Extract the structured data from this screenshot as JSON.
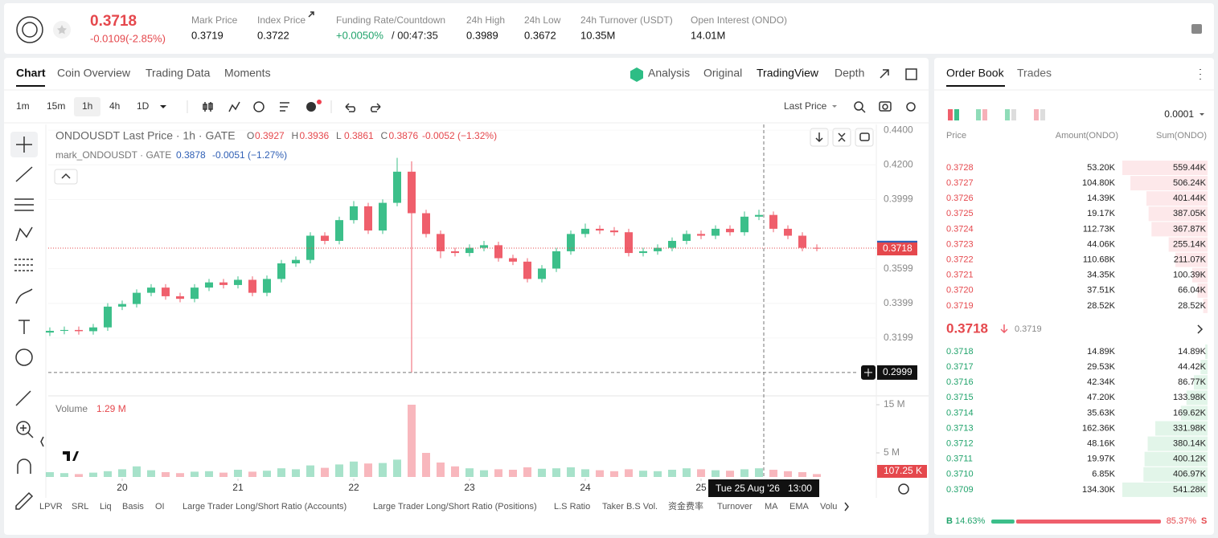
{
  "header": {
    "price": "0.3718",
    "change": "-0.0109(-2.85%)",
    "stats": [
      {
        "label": "Mark Price",
        "value": "0.3719"
      },
      {
        "label": "Index Price",
        "value": "0.3722"
      },
      {
        "label": "Funding Rate/Countdown",
        "value": "+0.0050%",
        "extra": "/ 00:47:35"
      },
      {
        "label": "24h High",
        "value": "0.3989"
      },
      {
        "label": "24h Low",
        "value": "0.3672"
      },
      {
        "label": "24h Turnover (USDT)",
        "value": "10.35M"
      },
      {
        "label": "Open Interest (ONDO)",
        "value": "14.01M"
      }
    ]
  },
  "chart_panel": {
    "tabs": [
      "Chart",
      "Coin Overview",
      "Trading Data",
      "Moments"
    ],
    "views": [
      "Analysis",
      "Original",
      "TradingView",
      "Depth"
    ],
    "intervals": [
      "1m",
      "15m",
      "1h",
      "4h",
      "1D"
    ],
    "price_source": "Last Price",
    "indicators": [
      "LPVR",
      "SRL",
      "Liq",
      "Basis",
      "OI",
      "Large Trader Long/Short Ratio (Accounts)",
      "Large Trader Long/Short Ratio (Positions)",
      "L.S Ratio",
      "Taker B.S Vol.",
      "资金费率",
      "Turnover",
      "MA",
      "EMA",
      "Volu"
    ]
  },
  "chart_data": {
    "type": "candlestick",
    "legend": {
      "title": "ONDOUSDT Last Price · 1h · GATE",
      "ohlc": [
        {
          "k": "O",
          "v": "0.3927"
        },
        {
          "k": "H",
          "v": "0.3936"
        },
        {
          "k": "L",
          "v": "0.3861"
        },
        {
          "k": "C",
          "v": "0.3876"
        }
      ],
      "change": "-0.0052 (−1.32%)",
      "mark_title": "mark_ONDOUSDT · GATE",
      "mark_value": "0.3878",
      "mark_change": "-0.0051 (−1.27%)"
    },
    "x": [
      -15,
      -12,
      -9,
      -6,
      -3,
      0,
      3,
      6,
      9,
      12,
      15,
      18,
      21,
      24,
      27,
      30,
      33,
      36,
      39,
      42,
      45,
      48,
      51,
      54,
      57,
      60,
      63,
      66,
      69,
      72,
      75,
      78,
      81,
      84,
      87,
      90,
      93,
      96,
      99,
      102,
      105,
      108,
      111,
      114,
      117,
      120,
      123,
      126,
      129,
      132,
      135,
      138,
      141,
      144
    ],
    "open": [
      0.323,
      0.324,
      0.3245,
      0.3238,
      0.326,
      0.338,
      0.3395,
      0.346,
      0.349,
      0.344,
      0.3425,
      0.349,
      0.352,
      0.3505,
      0.3535,
      0.346,
      0.354,
      0.363,
      0.365,
      0.379,
      0.376,
      0.388,
      0.396,
      0.382,
      0.398,
      0.416,
      0.392,
      0.38,
      0.37,
      0.369,
      0.372,
      0.3735,
      0.366,
      0.364,
      0.354,
      0.36,
      0.37,
      0.38,
      0.383,
      0.382,
      0.381,
      0.369,
      0.37,
      0.372,
      0.376,
      0.38,
      0.379,
      0.383,
      0.381,
      0.39,
      0.391,
      0.383,
      0.379,
      0.372
    ],
    "high": [
      0.326,
      0.3265,
      0.3265,
      0.328,
      0.34,
      0.3415,
      0.348,
      0.351,
      0.351,
      0.346,
      0.351,
      0.354,
      0.354,
      0.3555,
      0.3555,
      0.356,
      0.365,
      0.367,
      0.381,
      0.381,
      0.39,
      0.399,
      0.398,
      0.4,
      0.424,
      0.422,
      0.394,
      0.382,
      0.372,
      0.374,
      0.376,
      0.3755,
      0.368,
      0.366,
      0.362,
      0.372,
      0.382,
      0.386,
      0.385,
      0.384,
      0.383,
      0.372,
      0.374,
      0.378,
      0.382,
      0.382,
      0.385,
      0.385,
      0.393,
      0.394,
      0.393,
      0.385,
      0.381,
      0.374
    ],
    "low": [
      0.321,
      0.322,
      0.3218,
      0.3218,
      0.324,
      0.336,
      0.3375,
      0.344,
      0.342,
      0.3405,
      0.3405,
      0.347,
      0.3485,
      0.3485,
      0.344,
      0.344,
      0.352,
      0.361,
      0.363,
      0.374,
      0.374,
      0.386,
      0.38,
      0.38,
      0.396,
      0.2999,
      0.378,
      0.366,
      0.367,
      0.367,
      0.37,
      0.364,
      0.362,
      0.352,
      0.352,
      0.358,
      0.368,
      0.378,
      0.38,
      0.379,
      0.367,
      0.367,
      0.368,
      0.37,
      0.374,
      0.377,
      0.377,
      0.379,
      0.379,
      0.388,
      0.381,
      0.377,
      0.37,
      0.37
    ],
    "close": [
      0.324,
      0.3245,
      0.3238,
      0.326,
      0.338,
      0.3395,
      0.346,
      0.349,
      0.344,
      0.3425,
      0.349,
      0.352,
      0.3505,
      0.3535,
      0.346,
      0.354,
      0.363,
      0.365,
      0.379,
      0.376,
      0.388,
      0.396,
      0.382,
      0.398,
      0.416,
      0.392,
      0.38,
      0.37,
      0.369,
      0.372,
      0.3735,
      0.366,
      0.364,
      0.354,
      0.36,
      0.37,
      0.38,
      0.383,
      0.382,
      0.381,
      0.369,
      0.37,
      0.372,
      0.376,
      0.38,
      0.379,
      0.383,
      0.381,
      0.39,
      0.391,
      0.383,
      0.379,
      0.372,
      0.3718
    ],
    "up_color": "#3cbf8a",
    "down_color": "#ef5f6c",
    "xlim": [
      -15.33,
      156.33
    ],
    "xticks": [
      {
        "value": 0,
        "label": "20"
      },
      {
        "value": 24,
        "label": "21"
      },
      {
        "value": 48,
        "label": "22"
      },
      {
        "value": 72,
        "label": "23"
      },
      {
        "value": 96,
        "label": "24"
      },
      {
        "value": 120,
        "label": "25"
      }
    ],
    "ylim": [
      0.2878,
      0.4433
    ],
    "yticks": [
      {
        "value": 0.44,
        "label": "0.4400"
      },
      {
        "value": 0.42,
        "label": "0.4200"
      },
      0.3999,
      0.3599,
      0.3399,
      0.3199
    ],
    "mark_price": 0.3719,
    "last_price": 0.3718,
    "crosshair": {
      "x": 133,
      "y": 0.2999,
      "time_label": "Tue 25 Aug '26   13:00"
    },
    "volume": {
      "label": "Volume",
      "current": "1.29 M",
      "last_label": "107.25 K",
      "ylim": [
        0,
        16.5
      ],
      "yticks": [
        {
          "value": 15,
          "label": "15 M"
        },
        {
          "value": 5,
          "label": "5 M"
        }
      ],
      "values": [
        1.0,
        0.8,
        0.6,
        0.9,
        1.2,
        1.6,
        2.2,
        1.4,
        1.0,
        0.8,
        1.1,
        1.2,
        0.9,
        1.5,
        1.1,
        1.3,
        1.8,
        1.6,
        2.4,
        1.9,
        2.6,
        3.2,
        2.8,
        2.9,
        3.6,
        15.0,
        5.0,
        3.0,
        2.2,
        1.8,
        1.4,
        1.6,
        1.5,
        2.0,
        1.7,
        1.8,
        2.0,
        1.6,
        1.4,
        1.2,
        1.6,
        1.3,
        1.2,
        1.5,
        1.8,
        1.6,
        1.4,
        1.3,
        1.6,
        1.8,
        1.5,
        1.2,
        1.0,
        0.6
      ]
    }
  },
  "order_book": {
    "tabs": [
      "Order Book",
      "Trades"
    ],
    "precision": "0.0001",
    "headers": [
      "Price",
      "Amount(ONDO)",
      "Sum(ONDO)"
    ],
    "asks": {
      "prices": [
        "0.3728",
        "0.3727",
        "0.3726",
        "0.3725",
        "0.3724",
        "0.3723",
        "0.3722",
        "0.3721",
        "0.3720",
        "0.3719"
      ],
      "amounts": [
        "53.20K",
        "104.80K",
        "14.39K",
        "19.17K",
        "112.73K",
        "44.06K",
        "110.68K",
        "34.35K",
        "37.51K",
        "28.52K"
      ],
      "sums": [
        559.44,
        506.24,
        401.44,
        387.05,
        367.87,
        255.14,
        211.07,
        100.39,
        66.04,
        28.52
      ],
      "sum_labels": [
        "559.44K",
        "506.24K",
        "401.44K",
        "387.05K",
        "367.87K",
        "255.14K",
        "211.07K",
        "100.39K",
        "66.04K",
        "28.52K"
      ]
    },
    "mid": {
      "price": "0.3718",
      "mark": "0.3719"
    },
    "bids": {
      "prices": [
        "0.3718",
        "0.3717",
        "0.3716",
        "0.3715",
        "0.3714",
        "0.3713",
        "0.3712",
        "0.3711",
        "0.3710",
        "0.3709"
      ],
      "amounts": [
        "14.89K",
        "29.53K",
        "42.34K",
        "47.20K",
        "35.63K",
        "162.36K",
        "48.16K",
        "19.97K",
        "6.85K",
        "134.30K"
      ],
      "sums": [
        14.89,
        44.42,
        86.77,
        133.98,
        169.62,
        331.98,
        380.14,
        400.12,
        406.97,
        541.28
      ],
      "sum_labels": [
        "14.89K",
        "44.42K",
        "86.77K",
        "133.98K",
        "169.62K",
        "331.98K",
        "380.14K",
        "400.12K",
        "406.97K",
        "541.28K"
      ]
    },
    "ratio": {
      "buy_letter": "B",
      "buy": 14.63,
      "buy_label": "14.63%",
      "sell": 85.37,
      "sell_label": "85.37%",
      "sell_letter": "S"
    }
  }
}
